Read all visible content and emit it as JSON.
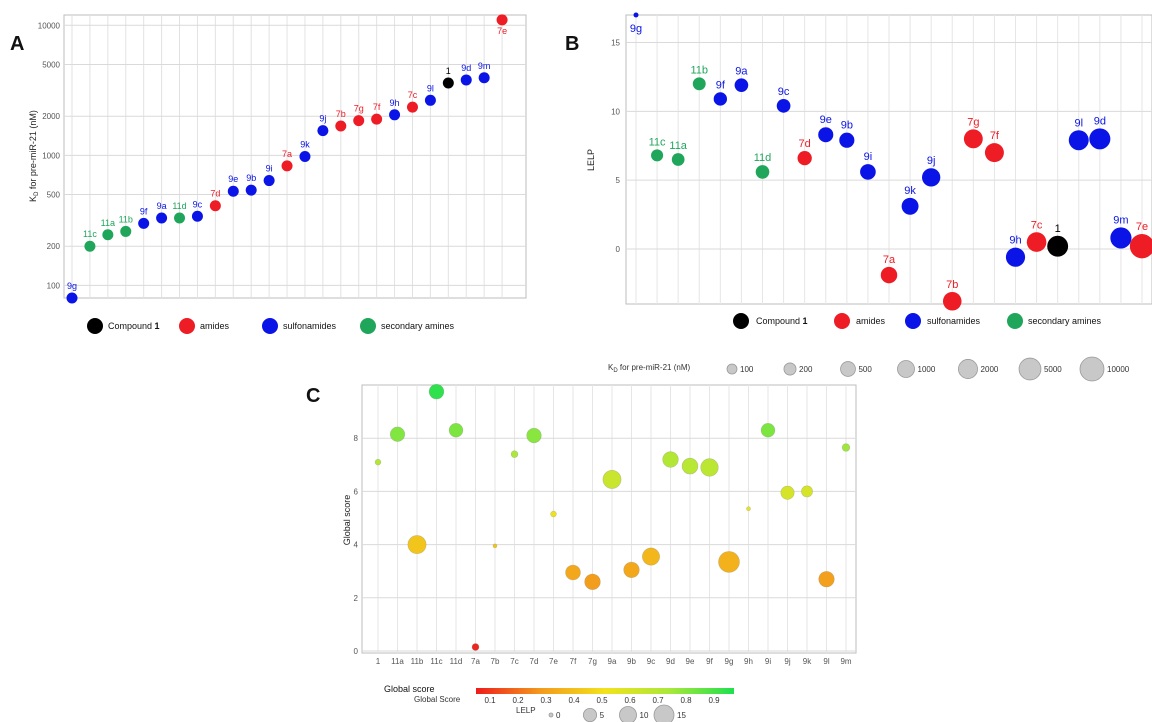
{
  "panels": {
    "a": "A",
    "b": "B",
    "c": "C"
  },
  "group_colors": {
    "compound": "#000000",
    "amides": "#ee1c25",
    "sulfonamides": "#0a14e6",
    "secondary": "#1fa65a"
  },
  "legend": {
    "compound_prefix": "Compound",
    "compound_num": "1",
    "amides": "amides",
    "sulfonamides": "sulfonamides",
    "secondary": "secondary amines"
  },
  "size_legend": {
    "title_prefix": "K",
    "title_sub": "D",
    "title_suffix": " for pre-miR-21 (nM)",
    "values": [
      "100",
      "200",
      "500",
      "1000",
      "2000",
      "5000",
      "10000"
    ]
  },
  "bottom_legend": {
    "gradient_title": "Global score",
    "gradient_subtitle": "Global Score",
    "gradient_ticks": [
      "0.1",
      "0.2",
      "0.3",
      "0.4",
      "0.5",
      "0.6",
      "0.7",
      "0.8",
      "0.9"
    ],
    "lelp_title": "LELP",
    "lelp_values": [
      "0",
      "5",
      "10",
      "15"
    ]
  },
  "chart_data": [
    {
      "panel": "A",
      "type": "scatter",
      "ylabel_prefix": "K",
      "ylabel_sub": "D",
      "ylabel_suffix": " for pre-miR-21 (nM)",
      "yscale": "log",
      "ylim": [
        80,
        12000
      ],
      "yticks": [
        100,
        200,
        500,
        1000,
        2000,
        5000,
        10000
      ],
      "grid": true,
      "points": [
        {
          "label": "9g",
          "group": "sulfonamides",
          "y": 80
        },
        {
          "label": "11c",
          "group": "secondary",
          "y": 200
        },
        {
          "label": "11a",
          "group": "secondary",
          "y": 245
        },
        {
          "label": "11b",
          "group": "secondary",
          "y": 260
        },
        {
          "label": "9f",
          "group": "sulfonamides",
          "y": 300
        },
        {
          "label": "9a",
          "group": "sulfonamides",
          "y": 330
        },
        {
          "label": "11d",
          "group": "secondary",
          "y": 330
        },
        {
          "label": "9c",
          "group": "sulfonamides",
          "y": 340
        },
        {
          "label": "7d",
          "group": "amides",
          "y": 410
        },
        {
          "label": "9e",
          "group": "sulfonamides",
          "y": 530
        },
        {
          "label": "9b",
          "group": "sulfonamides",
          "y": 540
        },
        {
          "label": "9i",
          "group": "sulfonamides",
          "y": 640
        },
        {
          "label": "7a",
          "group": "amides",
          "y": 830
        },
        {
          "label": "9k",
          "group": "sulfonamides",
          "y": 980
        },
        {
          "label": "9j",
          "group": "sulfonamides",
          "y": 1550
        },
        {
          "label": "7b",
          "group": "amides",
          "y": 1680
        },
        {
          "label": "7g",
          "group": "amides",
          "y": 1850
        },
        {
          "label": "7f",
          "group": "amides",
          "y": 1900
        },
        {
          "label": "9h",
          "group": "sulfonamides",
          "y": 2050
        },
        {
          "label": "7c",
          "group": "amides",
          "y": 2350
        },
        {
          "label": "9l",
          "group": "sulfonamides",
          "y": 2650
        },
        {
          "label": "1",
          "group": "compound",
          "y": 3600
        },
        {
          "label": "9d",
          "group": "sulfonamides",
          "y": 3800
        },
        {
          "label": "9m",
          "group": "sulfonamides",
          "y": 3950
        },
        {
          "label": "7e",
          "group": "amides",
          "y": 11000
        }
      ]
    },
    {
      "panel": "B",
      "type": "scatter",
      "ylabel": "LELP",
      "ylim": [
        -4,
        17
      ],
      "yticks": [
        0,
        5,
        10,
        15
      ],
      "grid": true,
      "points": [
        {
          "label": "9g",
          "group": "sulfonamides",
          "y": 17.0,
          "kd": 80
        },
        {
          "label": "11c",
          "group": "secondary",
          "y": 6.8,
          "kd": 200
        },
        {
          "label": "11a",
          "group": "secondary",
          "y": 6.5,
          "kd": 245
        },
        {
          "label": "11b",
          "group": "secondary",
          "y": 12.0,
          "kd": 260
        },
        {
          "label": "9f",
          "group": "sulfonamides",
          "y": 10.9,
          "kd": 300
        },
        {
          "label": "9a",
          "group": "sulfonamides",
          "y": 11.9,
          "kd": 330
        },
        {
          "label": "11d",
          "group": "secondary",
          "y": 5.6,
          "kd": 330
        },
        {
          "label": "9c",
          "group": "sulfonamides",
          "y": 10.4,
          "kd": 340
        },
        {
          "label": "7d",
          "group": "amides",
          "y": 6.6,
          "kd": 410
        },
        {
          "label": "9e",
          "group": "sulfonamides",
          "y": 8.3,
          "kd": 530
        },
        {
          "label": "9b",
          "group": "sulfonamides",
          "y": 7.9,
          "kd": 540
        },
        {
          "label": "9i",
          "group": "sulfonamides",
          "y": 5.6,
          "kd": 640
        },
        {
          "label": "7a",
          "group": "amides",
          "y": -1.9,
          "kd": 830
        },
        {
          "label": "9k",
          "group": "sulfonamides",
          "y": 3.1,
          "kd": 980
        },
        {
          "label": "9j",
          "group": "sulfonamides",
          "y": 5.2,
          "kd": 1550
        },
        {
          "label": "7b",
          "group": "amides",
          "y": -3.8,
          "kd": 1680
        },
        {
          "label": "7g",
          "group": "amides",
          "y": 8.0,
          "kd": 1850
        },
        {
          "label": "7f",
          "group": "amides",
          "y": 7.0,
          "kd": 1900
        },
        {
          "label": "9h",
          "group": "sulfonamides",
          "y": -0.6,
          "kd": 2050
        },
        {
          "label": "7c",
          "group": "amides",
          "y": 0.5,
          "kd": 2350
        },
        {
          "label": "1",
          "group": "compound",
          "y": 0.2,
          "kd": 3600
        },
        {
          "label": "9l",
          "group": "sulfonamides",
          "y": 7.9,
          "kd": 2650
        },
        {
          "label": "9d",
          "group": "sulfonamides",
          "y": 8.0,
          "kd": 3800
        },
        {
          "label": "9m",
          "group": "sulfonamides",
          "y": 0.8,
          "kd": 3950
        },
        {
          "label": "7e",
          "group": "amides",
          "y": 0.2,
          "kd": 11000
        }
      ]
    },
    {
      "panel": "C",
      "type": "scatter",
      "ylabel": "Global score",
      "ylim": [
        0,
        10
      ],
      "yticks": [
        0,
        2,
        4,
        6,
        8
      ],
      "grid": true,
      "categories": [
        "1",
        "11a",
        "11b",
        "11c",
        "11d",
        "7a",
        "7b",
        "7c",
        "7d",
        "7e",
        "7f",
        "7g",
        "9a",
        "9b",
        "9c",
        "9d",
        "9e",
        "9f",
        "9g",
        "9h",
        "9i",
        "9j",
        "9k",
        "9l",
        "9m"
      ],
      "points": [
        {
          "label": "1",
          "score": 7.1,
          "lelp": 0.2,
          "norm": 0.72
        },
        {
          "label": "11a",
          "score": 8.15,
          "lelp": 6.5,
          "norm": 0.82
        },
        {
          "label": "11b",
          "score": 4.0,
          "lelp": 12.0,
          "norm": 0.4
        },
        {
          "label": "11c",
          "score": 9.75,
          "lelp": 6.8,
          "norm": 0.97
        },
        {
          "label": "11d",
          "score": 8.3,
          "lelp": 5.6,
          "norm": 0.83
        },
        {
          "label": "7a",
          "score": 0.15,
          "lelp": 0,
          "norm": 0.02
        },
        {
          "label": "7b",
          "score": 3.95,
          "lelp": 0,
          "norm": 0.4
        },
        {
          "label": "7c",
          "score": 7.4,
          "lelp": 0.5,
          "norm": 0.74
        },
        {
          "label": "7d",
          "score": 8.1,
          "lelp": 6.6,
          "norm": 0.81
        },
        {
          "label": "7e",
          "score": 5.15,
          "lelp": 0.2,
          "norm": 0.52
        },
        {
          "label": "7f",
          "score": 2.95,
          "lelp": 7.0,
          "norm": 0.3
        },
        {
          "label": "7g",
          "score": 2.6,
          "lelp": 8.0,
          "norm": 0.26
        },
        {
          "label": "9a",
          "score": 6.45,
          "lelp": 11.9,
          "norm": 0.64
        },
        {
          "label": "9b",
          "score": 3.05,
          "lelp": 7.9,
          "norm": 0.3
        },
        {
          "label": "9c",
          "score": 3.55,
          "lelp": 10.4,
          "norm": 0.35
        },
        {
          "label": "9d",
          "score": 7.2,
          "lelp": 8.0,
          "norm": 0.72
        },
        {
          "label": "9e",
          "score": 6.95,
          "lelp": 8.3,
          "norm": 0.7
        },
        {
          "label": "9f",
          "score": 6.9,
          "lelp": 10.9,
          "norm": 0.69
        },
        {
          "label": "9g",
          "score": 3.35,
          "lelp": 17.0,
          "norm": 0.33
        },
        {
          "label": "9h",
          "score": 5.35,
          "lelp": 0,
          "norm": 0.54
        },
        {
          "label": "9i",
          "score": 8.3,
          "lelp": 5.6,
          "norm": 0.83
        },
        {
          "label": "9j",
          "score": 5.95,
          "lelp": 5.2,
          "norm": 0.6
        },
        {
          "label": "9k",
          "score": 6.0,
          "lelp": 3.1,
          "norm": 0.6
        },
        {
          "label": "9l",
          "score": 2.7,
          "lelp": 7.9,
          "norm": 0.27
        },
        {
          "label": "9m",
          "score": 7.65,
          "lelp": 0.8,
          "norm": 0.77
        }
      ]
    }
  ]
}
